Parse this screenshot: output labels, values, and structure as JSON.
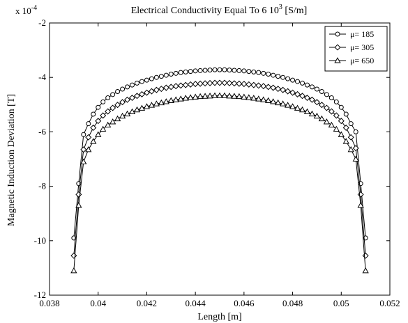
{
  "chart_data": {
    "type": "line",
    "title_main": "Electrical Conductivity Equal To 6 10",
    "title_sup": "3",
    "title_tail": " [S/m]",
    "xlabel": "Length [m]",
    "ylabel": "Magnetic Induction Deviation [T]",
    "exponent_prefix": "x 10",
    "exponent_sup": "-4",
    "xlim": [
      0.038,
      0.052
    ],
    "ylim": [
      -12,
      -2
    ],
    "x_ticks": [
      "0.038",
      "0.04",
      "0.042",
      "0.044",
      "0.046",
      "0.048",
      "0.05",
      "0.052"
    ],
    "y_ticks": [
      "-2",
      "-4",
      "-6",
      "-8",
      "-10",
      "-12"
    ],
    "grid": false,
    "legend_position": "top-right",
    "series": [
      {
        "name": "μ= 185",
        "marker": "circle",
        "x": [
          0.039,
          0.0392,
          0.0394,
          0.0396,
          0.0398,
          0.04,
          0.0402,
          0.0404,
          0.0406,
          0.0408,
          0.041,
          0.0412,
          0.0414,
          0.0416,
          0.0418,
          0.042,
          0.0422,
          0.0424,
          0.0426,
          0.0428,
          0.043,
          0.0432,
          0.0434,
          0.0436,
          0.0438,
          0.044,
          0.0442,
          0.0444,
          0.0446,
          0.0448,
          0.045,
          0.0452,
          0.0454,
          0.0456,
          0.0458,
          0.046,
          0.0462,
          0.0464,
          0.0466,
          0.0468,
          0.047,
          0.0472,
          0.0474,
          0.0476,
          0.0478,
          0.048,
          0.0482,
          0.0484,
          0.0486,
          0.0488,
          0.049,
          0.0492,
          0.0494,
          0.0496,
          0.0498,
          0.05,
          0.0502,
          0.0504,
          0.0506,
          0.0508,
          0.051
        ],
        "y": [
          -9.9,
          -7.9,
          -6.1,
          -5.7,
          -5.35,
          -5.1,
          -4.9,
          -4.75,
          -4.63,
          -4.52,
          -4.43,
          -4.35,
          -4.28,
          -4.21,
          -4.15,
          -4.1,
          -4.05,
          -4.0,
          -3.96,
          -3.92,
          -3.88,
          -3.85,
          -3.82,
          -3.8,
          -3.78,
          -3.76,
          -3.75,
          -3.74,
          -3.73,
          -3.72,
          -3.72,
          -3.72,
          -3.73,
          -3.74,
          -3.75,
          -3.76,
          -3.78,
          -3.8,
          -3.82,
          -3.85,
          -3.88,
          -3.92,
          -3.96,
          -4.0,
          -4.05,
          -4.1,
          -4.15,
          -4.21,
          -4.28,
          -4.35,
          -4.43,
          -4.52,
          -4.63,
          -4.75,
          -4.9,
          -5.1,
          -5.35,
          -5.7,
          -6.0,
          -7.9,
          -9.9
        ]
      },
      {
        "name": "μ= 305",
        "marker": "diamond",
        "x": [
          0.039,
          0.0392,
          0.0394,
          0.0396,
          0.0398,
          0.04,
          0.0402,
          0.0404,
          0.0406,
          0.0408,
          0.041,
          0.0412,
          0.0414,
          0.0416,
          0.0418,
          0.042,
          0.0422,
          0.0424,
          0.0426,
          0.0428,
          0.043,
          0.0432,
          0.0434,
          0.0436,
          0.0438,
          0.044,
          0.0442,
          0.0444,
          0.0446,
          0.0448,
          0.045,
          0.0452,
          0.0454,
          0.0456,
          0.0458,
          0.046,
          0.0462,
          0.0464,
          0.0466,
          0.0468,
          0.047,
          0.0472,
          0.0474,
          0.0476,
          0.0478,
          0.048,
          0.0482,
          0.0484,
          0.0486,
          0.0488,
          0.049,
          0.0492,
          0.0494,
          0.0496,
          0.0498,
          0.05,
          0.0502,
          0.0504,
          0.0506,
          0.0508,
          0.051
        ],
        "y": [
          -10.55,
          -8.3,
          -6.65,
          -6.2,
          -5.85,
          -5.6,
          -5.4,
          -5.25,
          -5.12,
          -5.01,
          -4.91,
          -4.82,
          -4.75,
          -4.68,
          -4.62,
          -4.56,
          -4.51,
          -4.46,
          -4.42,
          -4.38,
          -4.35,
          -4.32,
          -4.3,
          -4.28,
          -4.26,
          -4.24,
          -4.23,
          -4.22,
          -4.21,
          -4.2,
          -4.2,
          -4.2,
          -4.21,
          -4.22,
          -4.23,
          -4.24,
          -4.26,
          -4.28,
          -4.3,
          -4.32,
          -4.35,
          -4.38,
          -4.42,
          -4.46,
          -4.51,
          -4.56,
          -4.62,
          -4.68,
          -4.75,
          -4.82,
          -4.91,
          -5.01,
          -5.12,
          -5.25,
          -5.4,
          -5.6,
          -5.85,
          -6.2,
          -6.6,
          -8.3,
          -10.55
        ]
      },
      {
        "name": "μ= 650",
        "marker": "triangle",
        "x": [
          0.039,
          0.0392,
          0.0394,
          0.0396,
          0.0398,
          0.04,
          0.0402,
          0.0404,
          0.0406,
          0.0408,
          0.041,
          0.0412,
          0.0414,
          0.0416,
          0.0418,
          0.042,
          0.0422,
          0.0424,
          0.0426,
          0.0428,
          0.043,
          0.0432,
          0.0434,
          0.0436,
          0.0438,
          0.044,
          0.0442,
          0.0444,
          0.0446,
          0.0448,
          0.045,
          0.0452,
          0.0454,
          0.0456,
          0.0458,
          0.046,
          0.0462,
          0.0464,
          0.0466,
          0.0468,
          0.047,
          0.0472,
          0.0474,
          0.0476,
          0.0478,
          0.048,
          0.0482,
          0.0484,
          0.0486,
          0.0488,
          0.049,
          0.0492,
          0.0494,
          0.0496,
          0.0498,
          0.05,
          0.0502,
          0.0504,
          0.0506,
          0.0508,
          0.051
        ],
        "y": [
          -11.1,
          -8.7,
          -7.1,
          -6.65,
          -6.35,
          -6.1,
          -5.9,
          -5.75,
          -5.63,
          -5.52,
          -5.42,
          -5.34,
          -5.26,
          -5.19,
          -5.13,
          -5.07,
          -5.02,
          -4.97,
          -4.93,
          -4.89,
          -4.85,
          -4.82,
          -4.79,
          -4.76,
          -4.74,
          -4.72,
          -4.7,
          -4.69,
          -4.68,
          -4.67,
          -4.67,
          -4.67,
          -4.68,
          -4.69,
          -4.7,
          -4.72,
          -4.74,
          -4.76,
          -4.79,
          -4.82,
          -4.85,
          -4.89,
          -4.93,
          -4.97,
          -5.02,
          -5.07,
          -5.13,
          -5.19,
          -5.26,
          -5.34,
          -5.42,
          -5.52,
          -5.63,
          -5.75,
          -5.9,
          -6.1,
          -6.35,
          -6.65,
          -7.0,
          -8.7,
          -11.1
        ]
      }
    ]
  }
}
